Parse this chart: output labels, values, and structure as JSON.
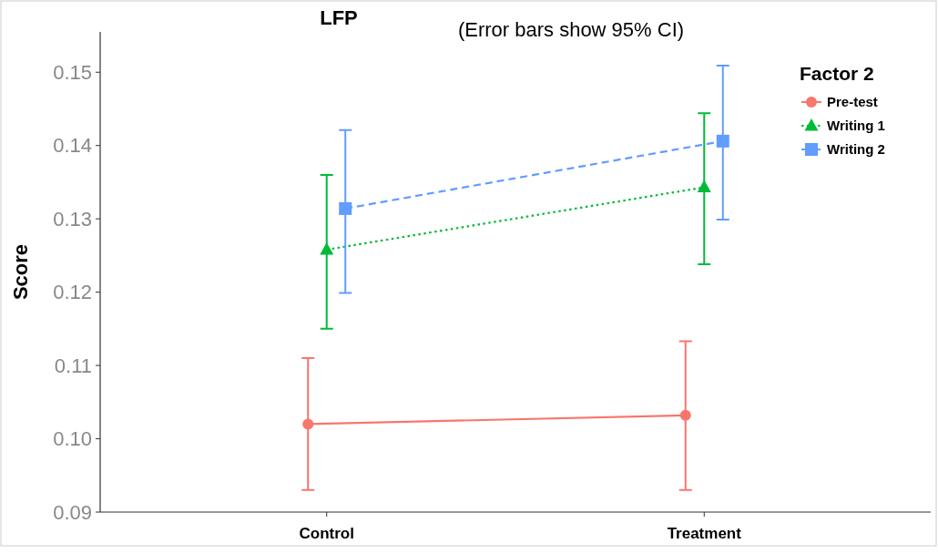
{
  "chart_data": {
    "type": "line",
    "title": "LFP",
    "subtitle": "(Error bars show 95% CI)",
    "ylabel": "Score",
    "legend_title": "Factor 2",
    "categories": [
      "Control",
      "Treatment"
    ],
    "series": [
      {
        "name": "Pre-test",
        "color": "#f8766d",
        "values": [
          0.102,
          0.1032
        ],
        "errors": [
          [
            0.093,
            0.111
          ],
          [
            0.093,
            0.1133
          ]
        ],
        "marker": "circle",
        "line_style": "solid"
      },
      {
        "name": "Writing 1",
        "color": "#00ba38",
        "values": [
          0.1258,
          0.1343
        ],
        "errors": [
          [
            0.115,
            0.136
          ],
          [
            0.1238,
            0.1444
          ]
        ],
        "marker": "triangle",
        "line_style": "dotted"
      },
      {
        "name": "Writing 2",
        "color": "#619cff",
        "values": [
          0.1314,
          0.1406
        ],
        "errors": [
          [
            0.1199,
            0.1421
          ],
          [
            0.1299,
            0.1509
          ]
        ],
        "marker": "square",
        "line_style": "dashed"
      }
    ],
    "ylim": [
      0.09,
      0.1555
    ],
    "yticks": [
      0.09,
      {
        "value": 0.1,
        "label": "0.10"
      },
      0.11,
      0.12,
      0.13,
      0.14,
      0.15
    ],
    "grid": false,
    "legend": "top right"
  }
}
